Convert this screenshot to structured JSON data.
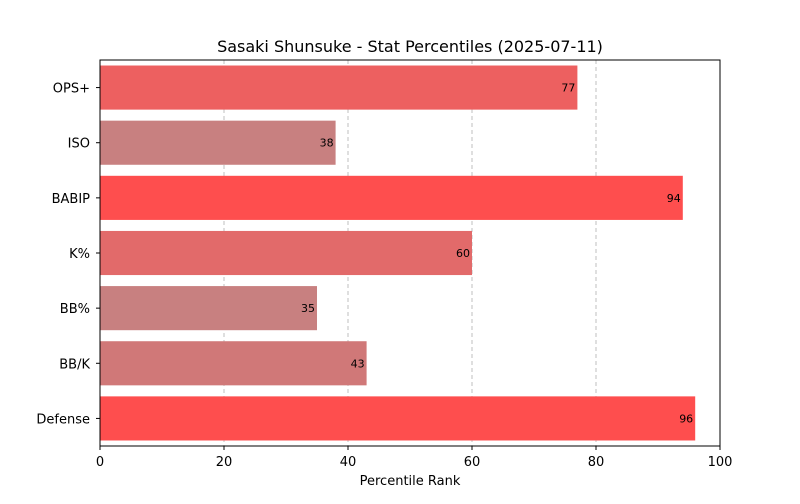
{
  "chart_data": {
    "type": "bar",
    "orientation": "horizontal",
    "title": "Sasaki Shunsuke - Stat Percentiles (2025-07-11)",
    "xlabel": "Percentile Rank",
    "ylabel": "",
    "xlim": [
      0,
      100
    ],
    "xticks": [
      0,
      20,
      40,
      60,
      80,
      100
    ],
    "grid": "x-dashed",
    "categories": [
      "OPS+",
      "ISO",
      "BABIP",
      "K%",
      "BB%",
      "BB/K",
      "Defense"
    ],
    "values": [
      77,
      38,
      94,
      60,
      35,
      43,
      96
    ],
    "colors": [
      "#ed6060",
      "#c88080",
      "#fe4e4e",
      "#e26a6a",
      "#c88080",
      "#d07878",
      "#fe4e4e"
    ]
  }
}
